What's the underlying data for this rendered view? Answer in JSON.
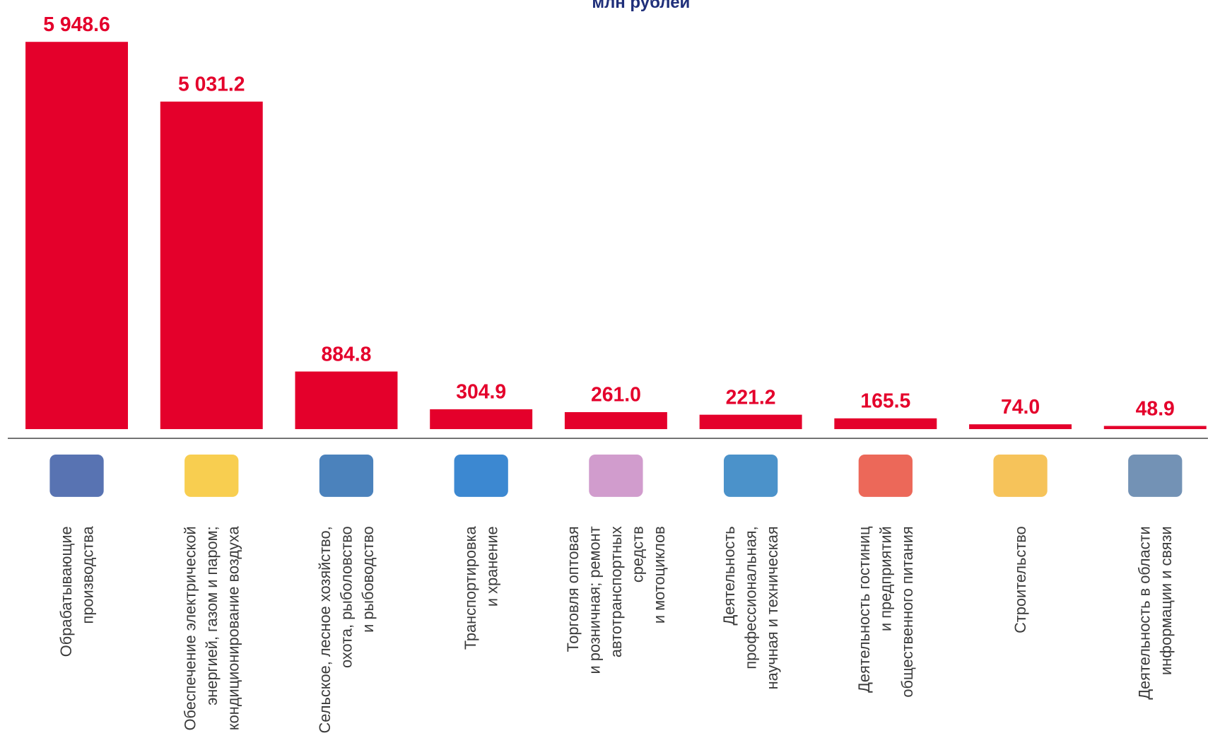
{
  "chart_data": {
    "type": "bar",
    "subtitle": "млн рублей",
    "categories": [
      [
        "Обрабатывающие",
        "производства"
      ],
      [
        "Обеспечение электрической",
        "энергией, газом и паром;",
        "кондиционирование воздуха"
      ],
      [
        "Сельское, лесное хозяйство,",
        "охота, рыболовство",
        "и рыбоводство"
      ],
      [
        "Транспортировка",
        "и хранение"
      ],
      [
        "Торговля оптовая",
        "и розничная; ремонт",
        "автотранспортных",
        "средств",
        "и мотоциклов"
      ],
      [
        "Деятельность",
        "профессиональная,",
        "научная и техническая"
      ],
      [
        "Деятельность гостиниц",
        "и предприятий",
        "общественного питания"
      ],
      [
        "Строительство"
      ],
      [
        "Деятельность в области",
        "информации и связи"
      ]
    ],
    "values": [
      5948.6,
      5031.2,
      884.8,
      304.9,
      261.0,
      221.2,
      165.5,
      74.0,
      48.9
    ],
    "value_labels": [
      "5 948.6",
      "5 031.2",
      "884.8",
      "304.9",
      "261.0",
      "221.2",
      "165.5",
      "74.0",
      "48.9"
    ],
    "color": "#e4002b",
    "ylim": [
      0,
      6000
    ]
  }
}
